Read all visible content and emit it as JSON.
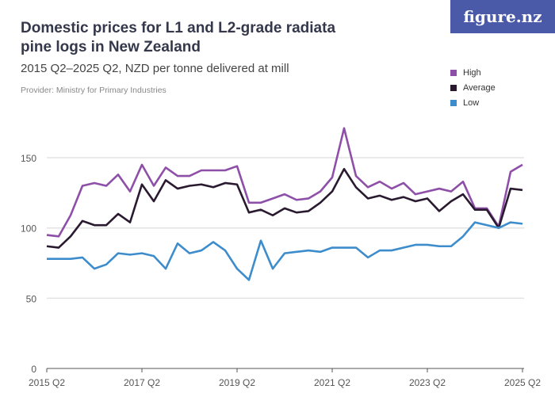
{
  "title": "Domestic prices for L1 and L2-grade radiata pine logs in New Zealand",
  "subtitle": "2015 Q2–2025 Q2, NZD per tonne delivered at mill",
  "provider": "Provider: Ministry for Primary Industries",
  "logo": "figure.nz",
  "chart_data": {
    "type": "line",
    "title": "Domestic prices for L1 and L2-grade radiata pine logs in New Zealand",
    "x_start": "2015 Q2",
    "x_end": "2025 Q2",
    "x_ticks": [
      "2015 Q2",
      "2017 Q2",
      "2019 Q2",
      "2021 Q2",
      "2023 Q2",
      "2025 Q2"
    ],
    "y_ticks": [
      0,
      50,
      100,
      150
    ],
    "ylim": [
      0,
      175
    ],
    "grid": true,
    "legend_position": "top-right",
    "series": [
      {
        "name": "High",
        "color": "#8e4fa8",
        "values": [
          95,
          94,
          109,
          130,
          132,
          130,
          138,
          126,
          145,
          130,
          143,
          137,
          137,
          141,
          141,
          141,
          144,
          118,
          118,
          121,
          124,
          120,
          121,
          126,
          136,
          171,
          137,
          129,
          133,
          128,
          132,
          124,
          126,
          128,
          126,
          133,
          114,
          114,
          101,
          140,
          145
        ]
      },
      {
        "name": "Average",
        "color": "#2a1a30",
        "values": [
          87,
          86,
          94,
          105,
          102,
          102,
          110,
          104,
          131,
          119,
          134,
          128,
          130,
          131,
          129,
          132,
          131,
          111,
          113,
          109,
          114,
          111,
          112,
          118,
          126,
          142,
          129,
          121,
          123,
          120,
          122,
          119,
          121,
          112,
          119,
          124,
          113,
          113,
          100,
          128,
          127
        ]
      },
      {
        "name": "Low",
        "color": "#3d8ccc",
        "values": [
          78,
          78,
          78,
          79,
          71,
          74,
          82,
          81,
          82,
          80,
          71,
          89,
          82,
          84,
          90,
          84,
          71,
          63,
          91,
          71,
          82,
          83,
          84,
          83,
          86,
          86,
          86,
          79,
          84,
          84,
          86,
          88,
          88,
          87,
          87,
          94,
          104,
          102,
          100,
          104,
          103
        ]
      }
    ]
  }
}
